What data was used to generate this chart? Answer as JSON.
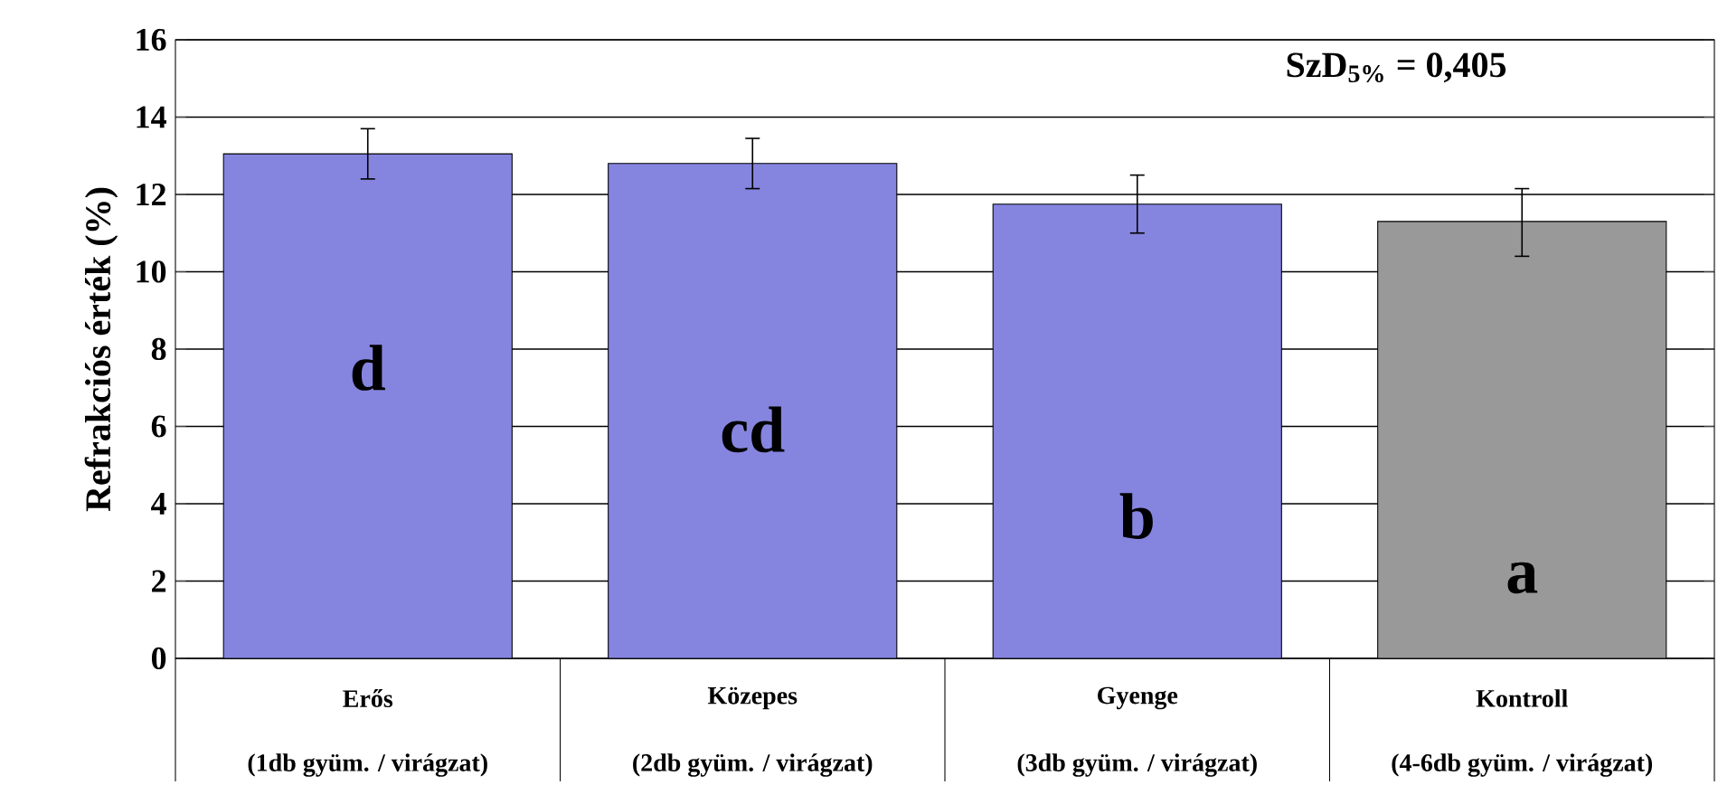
{
  "chart_data": {
    "type": "bar",
    "categories": [
      "Erős",
      "Közepes",
      "Gyenge",
      "Kontroll"
    ],
    "values": [
      13.05,
      12.8,
      11.75,
      11.3
    ],
    "colors": [
      "#8585e0",
      "#8585e0",
      "#8585e0",
      "#999999"
    ],
    "errors": [
      [
        12.4,
        13.7
      ],
      [
        12.15,
        13.45
      ],
      [
        11.0,
        12.5
      ],
      [
        10.4,
        12.15
      ]
    ],
    "ylabel": "Refrakciós érték (%)",
    "ylim": [
      0,
      16
    ],
    "yticks": [
      0,
      2,
      4,
      6,
      8,
      10,
      12,
      14,
      16
    ],
    "grid": "y",
    "annotations": [
      "(1db gyüm. / virágzat)",
      "(2db gyüm. / virágzat)",
      "(3db gyüm. / virágzat)",
      "(4-6db gyüm. / virágzat)",
      "d",
      "cd",
      "b",
      "a",
      "SzD$_{5%}$ = 0,405"
    ]
  }
}
